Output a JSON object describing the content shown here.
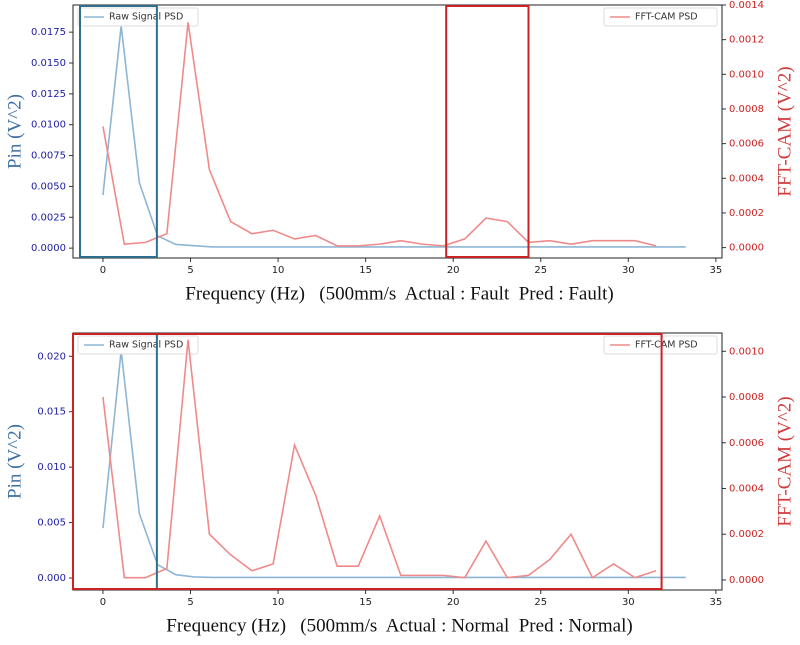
{
  "chart_data": [
    {
      "type": "line",
      "xlabel": "Frequency (Hz)   (500mm/s  Actual : Fault  Pred : Fault)",
      "ylabel": "Pin (V^2)",
      "y2label": "FFT-CAM (V^2)",
      "ylabel_color": "#3e6fa3",
      "y2label_color": "#d03a3a",
      "ytick_color": "#1c1ca8",
      "y2tick_color": "#cc2222",
      "xlim": [
        -1.71,
        35.35
      ],
      "xticks": [
        0,
        5,
        10,
        15,
        20,
        25,
        30,
        35
      ],
      "ylim": [
        -0.0008,
        0.0197
      ],
      "yticks": [
        {
          "value": 0,
          "label": "0.0000"
        },
        {
          "value": 0.0025,
          "label": "0.0025"
        },
        {
          "value": 0.005,
          "label": "0.0050"
        },
        {
          "value": 0.0075,
          "label": "0.0075"
        },
        {
          "value": 0.01,
          "label": "0.0100"
        },
        {
          "value": 0.0125,
          "label": "0.0125"
        },
        {
          "value": 0.015,
          "label": "0.0150"
        },
        {
          "value": 0.0175,
          "label": "0.0175"
        }
      ],
      "y2lim": [
        -6e-05,
        0.0014
      ],
      "y2ticks": [
        {
          "value": 0,
          "label": "0.0000"
        },
        {
          "value": 0.0002,
          "label": "0.0002"
        },
        {
          "value": 0.0004,
          "label": "0.0004"
        },
        {
          "value": 0.0006,
          "label": "0.0006"
        },
        {
          "value": 0.0008,
          "label": "0.0008"
        },
        {
          "value": 0.001,
          "label": "0.0010"
        },
        {
          "value": 0.0012,
          "label": "0.0012"
        },
        {
          "value": 0.0014,
          "label": "0.0014"
        }
      ],
      "series": [
        {
          "name": "Raw Signal PSD",
          "color": "#8db6d4",
          "legend": "upper left",
          "x": [
            0,
            1.04,
            2.08,
            3.12,
            4.16,
            5.2,
            6.24,
            7.28,
            8.32,
            9.36,
            10.4,
            11.44,
            12.48,
            13.52,
            14.56,
            15.6,
            16.64,
            17.68,
            18.72,
            19.76,
            20.8,
            21.84,
            22.88,
            23.92,
            24.96,
            26,
            27.04,
            28.08,
            29.12,
            30.16,
            31.2,
            32.24,
            33.28
          ],
          "values": [
            0.0043,
            0.018,
            0.0053,
            0.001,
            0.0003,
            0.0002,
            0.0001,
            0.0001,
            0.0001,
            0.0001,
            0.0001,
            0.0001,
            0.0001,
            0.0001,
            0.0001,
            0.0001,
            0.0001,
            0.0001,
            0.0001,
            0.0001,
            0.0001,
            0.0001,
            0.0001,
            0.0001,
            0.0001,
            0.0001,
            0.0001,
            0.0001,
            0.0001,
            0.0001,
            0.0001,
            0.0001,
            0.0001
          ]
        },
        {
          "name": "FFT-CAM PSD",
          "color": "#f08a8a",
          "legend": "upper right",
          "axis": "y2",
          "x": [
            0,
            1.22,
            2.43,
            3.65,
            4.86,
            6.08,
            7.29,
            8.51,
            9.72,
            10.94,
            12.15,
            13.37,
            14.58,
            15.8,
            17.01,
            18.23,
            19.44,
            20.66,
            21.87,
            23.09,
            24.3,
            25.52,
            26.73,
            27.95,
            29.16,
            30.38,
            31.59
          ],
          "values": [
            0.0007,
            2e-05,
            3e-05,
            8e-05,
            0.0013,
            0.00045,
            0.00015,
            8e-05,
            0.0001,
            5e-05,
            7e-05,
            1e-05,
            1e-05,
            2e-05,
            4e-05,
            2e-05,
            1e-05,
            5e-05,
            0.00017,
            0.00015,
            3e-05,
            4e-05,
            2e-05,
            4e-05,
            4e-05,
            4e-05,
            1e-05
          ]
        }
      ],
      "regions": [
        {
          "x": [
            -1.31,
            3.08
          ],
          "color": "#2e6f8e"
        },
        {
          "x": [
            19.6,
            24.3
          ],
          "color": "#cc2222"
        }
      ]
    },
    {
      "type": "line",
      "xlabel": "Frequency (Hz)   (500mm/s  Actual : Normal  Pred : Normal)",
      "ylabel": "Pin (V^2)",
      "y2label": "FFT-CAM (V^2)",
      "ylabel_color": "#3e6fa3",
      "y2label_color": "#d03a3a",
      "ytick_color": "#1c1ca8",
      "y2tick_color": "#cc2222",
      "xlim": [
        -1.71,
        35.35
      ],
      "xticks": [
        0,
        5,
        10,
        15,
        20,
        25,
        30,
        35
      ],
      "ylim": [
        -0.00108,
        0.0221
      ],
      "yticks": [
        {
          "value": 0,
          "label": "0.000"
        },
        {
          "value": 0.005,
          "label": "0.005"
        },
        {
          "value": 0.01,
          "label": "0.010"
        },
        {
          "value": 0.015,
          "label": "0.015"
        },
        {
          "value": 0.02,
          "label": "0.020"
        }
      ],
      "y2lim": [
        -4.4e-05,
        0.00108
      ],
      "y2ticks": [
        {
          "value": 0,
          "label": "0.0000"
        },
        {
          "value": 0.0002,
          "label": "0.0002"
        },
        {
          "value": 0.0004,
          "label": "0.0004"
        },
        {
          "value": 0.0006,
          "label": "0.0006"
        },
        {
          "value": 0.0008,
          "label": "0.0008"
        },
        {
          "value": 0.001,
          "label": "0.0010"
        }
      ],
      "series": [
        {
          "name": "Raw Signal PSD",
          "color": "#8db6d4",
          "legend": "upper left",
          "x": [
            0,
            1.04,
            2.08,
            3.12,
            4.16,
            5.2,
            6.24,
            7.28,
            8.32,
            9.36,
            10.4,
            11.44,
            12.48,
            13.52,
            14.56,
            15.6,
            16.64,
            17.68,
            18.72,
            19.76,
            20.8,
            21.84,
            22.88,
            23.92,
            24.96,
            26,
            27.04,
            28.08,
            29.12,
            30.16,
            31.2,
            32.24,
            33.28
          ],
          "values": [
            0.0045,
            0.0205,
            0.0058,
            0.0012,
            0.0003,
            0.0001,
            5e-05,
            5e-05,
            5e-05,
            5e-05,
            5e-05,
            5e-05,
            5e-05,
            5e-05,
            5e-05,
            5e-05,
            5e-05,
            5e-05,
            5e-05,
            5e-05,
            5e-05,
            5e-05,
            5e-05,
            5e-05,
            5e-05,
            5e-05,
            5e-05,
            5e-05,
            5e-05,
            5e-05,
            5e-05,
            5e-05,
            5e-05
          ]
        },
        {
          "name": "FFT-CAM PSD",
          "color": "#f08a8a",
          "legend": "upper right",
          "axis": "y2",
          "x": [
            0,
            1.22,
            2.43,
            3.65,
            4.86,
            6.08,
            7.29,
            8.51,
            9.72,
            10.94,
            12.15,
            13.37,
            14.58,
            15.8,
            17.01,
            18.23,
            19.44,
            20.66,
            21.87,
            23.09,
            24.3,
            25.52,
            26.73,
            27.95,
            29.16,
            30.38,
            31.59
          ],
          "values": [
            0.0008,
            1e-05,
            1e-05,
            5e-05,
            0.00105,
            0.0002,
            0.00011,
            4e-05,
            7e-05,
            0.00059,
            0.00037,
            6e-05,
            6e-05,
            0.00028,
            2e-05,
            2e-05,
            2e-05,
            1e-05,
            0.00017,
            1e-05,
            2e-05,
            9e-05,
            0.0002,
            1e-05,
            7e-05,
            1e-05,
            4e-05
          ]
        }
      ],
      "regions": [
        {
          "x": [
            -1.71,
            3.08
          ],
          "color": "#2e6f8e"
        },
        {
          "x": [
            -1.71,
            31.9
          ],
          "color": "#cc2222"
        }
      ]
    }
  ]
}
